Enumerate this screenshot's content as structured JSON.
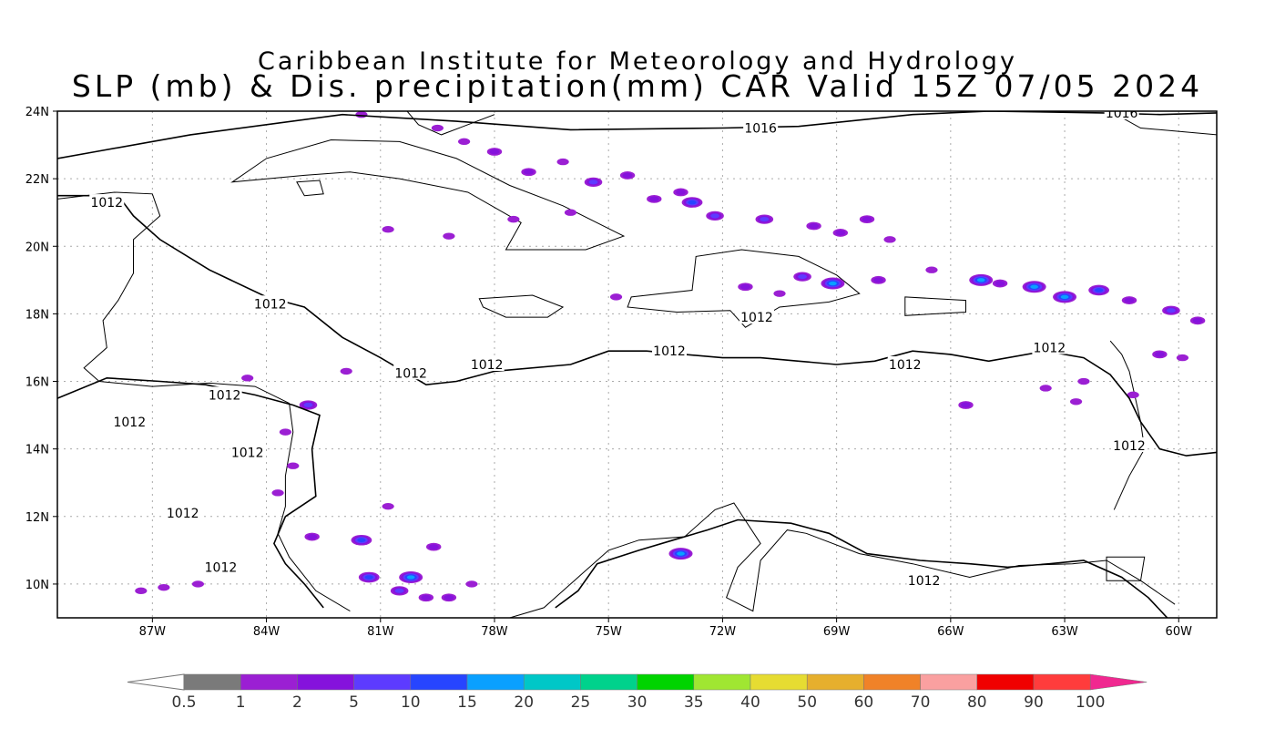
{
  "title": {
    "line1": "Caribbean Institute for Meteorology and Hydrology",
    "line2": "SLP (mb) & Dis. precipitation(mm) CAR Valid 15Z 07/05 2024"
  },
  "axes": {
    "lon_range": [
      -89.5,
      -59
    ],
    "lat_range": [
      9,
      24
    ],
    "lon_ticks": [
      {
        "value": -87,
        "label": "87W"
      },
      {
        "value": -84,
        "label": "84W"
      },
      {
        "value": -81,
        "label": "81W"
      },
      {
        "value": -78,
        "label": "78W"
      },
      {
        "value": -75,
        "label": "75W"
      },
      {
        "value": -72,
        "label": "72W"
      },
      {
        "value": -69,
        "label": "69W"
      },
      {
        "value": -66,
        "label": "66W"
      },
      {
        "value": -63,
        "label": "63W"
      },
      {
        "value": -60,
        "label": "60W"
      }
    ],
    "lat_ticks": [
      {
        "value": 24,
        "label": "24N"
      },
      {
        "value": 22,
        "label": "22N"
      },
      {
        "value": 20,
        "label": "20N"
      },
      {
        "value": 18,
        "label": "18N"
      },
      {
        "value": 16,
        "label": "16N"
      },
      {
        "value": 14,
        "label": "14N"
      },
      {
        "value": 12,
        "label": "12N"
      },
      {
        "value": 10,
        "label": "10N"
      }
    ],
    "grid": true
  },
  "isobars": [
    {
      "value": "1016",
      "points": [
        [
          -89.5,
          22.6
        ],
        [
          -88.5,
          22.8
        ],
        [
          -86,
          23.3
        ],
        [
          -82,
          23.9
        ],
        [
          -79,
          23.7
        ],
        [
          -76,
          23.45
        ],
        [
          -72,
          23.5
        ],
        [
          -70,
          23.55
        ],
        [
          -67,
          23.9
        ],
        [
          -65,
          24.0
        ],
        [
          -62,
          23.95
        ],
        [
          -60.5,
          23.9
        ],
        [
          -59,
          23.95
        ]
      ],
      "labels": [
        [
          -71,
          23.5
        ],
        [
          -61.5,
          23.95
        ]
      ]
    },
    {
      "value": "1012",
      "points": [
        [
          -89.5,
          21.5
        ],
        [
          -87.9,
          21.5
        ],
        [
          -87.5,
          20.9
        ],
        [
          -86.8,
          20.2
        ],
        [
          -85.5,
          19.3
        ],
        [
          -84,
          18.5
        ],
        [
          -83,
          18.2
        ],
        [
          -82,
          17.3
        ],
        [
          -81,
          16.7
        ],
        [
          -79.8,
          15.9
        ],
        [
          -79,
          16.0
        ],
        [
          -78,
          16.3
        ],
        [
          -76,
          16.5
        ],
        [
          -75,
          16.9
        ],
        [
          -74,
          16.9
        ],
        [
          -73,
          16.8
        ],
        [
          -72,
          16.7
        ],
        [
          -71,
          16.7
        ],
        [
          -70,
          16.6
        ],
        [
          -69,
          16.5
        ],
        [
          -68,
          16.6
        ],
        [
          -67,
          16.9
        ],
        [
          -66,
          16.8
        ],
        [
          -65,
          16.6
        ],
        [
          -63.5,
          16.9
        ],
        [
          -62.5,
          16.7
        ],
        [
          -61.8,
          16.2
        ],
        [
          -61.3,
          15.5
        ],
        [
          -61,
          14.8
        ],
        [
          -60.5,
          14.0
        ],
        [
          -59.8,
          13.8
        ],
        [
          -59,
          13.9
        ]
      ],
      "labels": [
        [
          -88.2,
          21.3
        ],
        [
          -83.9,
          18.3
        ],
        [
          -80.2,
          16.25
        ],
        [
          -78.2,
          16.5
        ],
        [
          -73.4,
          16.9
        ],
        [
          -71.1,
          17.9
        ],
        [
          -67.2,
          16.5
        ],
        [
          -63.4,
          17.0
        ],
        [
          -61.3,
          14.1
        ]
      ]
    },
    {
      "value": "1012",
      "points": [
        [
          -89.5,
          15.5
        ],
        [
          -88.2,
          16.1
        ],
        [
          -86.8,
          16.0
        ],
        [
          -85.6,
          15.9
        ],
        [
          -84.3,
          15.6
        ],
        [
          -83.3,
          15.3
        ],
        [
          -82.6,
          15.0
        ],
        [
          -82.8,
          14.0
        ],
        [
          -82.7,
          12.6
        ],
        [
          -83.5,
          12.0
        ],
        [
          -83.8,
          11.2
        ],
        [
          -83.5,
          10.6
        ],
        [
          -83.0,
          10.0
        ],
        [
          -82.5,
          9.3
        ]
      ],
      "labels": [
        [
          -85.1,
          15.6
        ],
        [
          -87.6,
          14.8
        ],
        [
          -84.5,
          13.9
        ],
        [
          -86.2,
          12.1
        ],
        [
          -85.2,
          10.5
        ]
      ]
    },
    {
      "value": "1012",
      "points": [
        [
          -76.4,
          9.3
        ],
        [
          -75.8,
          9.8
        ],
        [
          -75.3,
          10.6
        ],
        [
          -74.2,
          11.0
        ],
        [
          -73.3,
          11.3
        ],
        [
          -72.4,
          11.6
        ],
        [
          -71.6,
          11.9
        ],
        [
          -70.2,
          11.8
        ],
        [
          -69.2,
          11.5
        ],
        [
          -68.2,
          10.9
        ],
        [
          -66.8,
          10.7
        ],
        [
          -65.5,
          10.6
        ],
        [
          -64.5,
          10.5
        ],
        [
          -63.4,
          10.6
        ],
        [
          -62.5,
          10.7
        ],
        [
          -61.5,
          10.2
        ],
        [
          -60.8,
          9.6
        ],
        [
          -60.3,
          9.0
        ]
      ],
      "labels": [
        [
          -66.7,
          10.1
        ]
      ]
    }
  ],
  "coastlines": [
    {
      "name": "cuba",
      "closed": true,
      "points": [
        [
          -84.9,
          21.9
        ],
        [
          -84.0,
          22.6
        ],
        [
          -82.3,
          23.15
        ],
        [
          -80.5,
          23.1
        ],
        [
          -79.0,
          22.6
        ],
        [
          -77.6,
          21.8
        ],
        [
          -76.2,
          21.2
        ],
        [
          -74.6,
          20.3
        ],
        [
          -75.6,
          19.9
        ],
        [
          -77.7,
          19.9
        ],
        [
          -77.3,
          20.7
        ],
        [
          -78.7,
          21.6
        ],
        [
          -80.5,
          22.0
        ],
        [
          -81.8,
          22.2
        ],
        [
          -83.0,
          22.1
        ]
      ]
    },
    {
      "name": "isla-de-la-juventud",
      "closed": true,
      "points": [
        [
          -83.2,
          21.9
        ],
        [
          -82.6,
          21.95
        ],
        [
          -82.5,
          21.55
        ],
        [
          -83.0,
          21.5
        ]
      ]
    },
    {
      "name": "jamaica",
      "closed": true,
      "points": [
        [
          -78.4,
          18.45
        ],
        [
          -77.0,
          18.55
        ],
        [
          -76.2,
          18.2
        ],
        [
          -76.6,
          17.9
        ],
        [
          -77.7,
          17.9
        ],
        [
          -78.3,
          18.2
        ]
      ]
    },
    {
      "name": "hispaniola",
      "closed": true,
      "points": [
        [
          -74.4,
          18.5
        ],
        [
          -72.8,
          18.7
        ],
        [
          -72.7,
          19.7
        ],
        [
          -71.5,
          19.9
        ],
        [
          -70.0,
          19.7
        ],
        [
          -69.0,
          19.15
        ],
        [
          -68.4,
          18.6
        ],
        [
          -69.2,
          18.35
        ],
        [
          -70.5,
          18.2
        ],
        [
          -71.4,
          17.6
        ],
        [
          -71.8,
          18.1
        ],
        [
          -73.2,
          18.05
        ],
        [
          -74.5,
          18.2
        ]
      ]
    },
    {
      "name": "puerto-rico",
      "closed": true,
      "points": [
        [
          -67.2,
          18.5
        ],
        [
          -65.6,
          18.4
        ],
        [
          -65.6,
          18.05
        ],
        [
          -67.2,
          17.95
        ]
      ]
    },
    {
      "name": "yucatan-coast",
      "closed": false,
      "points": [
        [
          -89.5,
          21.4
        ],
        [
          -88.0,
          21.6
        ],
        [
          -87.0,
          21.55
        ],
        [
          -86.8,
          20.9
        ],
        [
          -87.5,
          20.2
        ],
        [
          -87.5,
          19.2
        ],
        [
          -87.9,
          18.4
        ],
        [
          -88.3,
          17.8
        ],
        [
          -88.2,
          17.0
        ],
        [
          -88.8,
          16.4
        ],
        [
          -88.4,
          16.0
        ],
        [
          -87.0,
          15.85
        ],
        [
          -85.5,
          15.95
        ],
        [
          -84.3,
          15.85
        ],
        [
          -83.4,
          15.35
        ],
        [
          -83.3,
          14.5
        ],
        [
          -83.5,
          13.2
        ],
        [
          -83.5,
          12.3
        ],
        [
          -83.7,
          11.5
        ],
        [
          -83.4,
          10.8
        ],
        [
          -82.7,
          9.8
        ],
        [
          -81.8,
          9.2
        ]
      ]
    },
    {
      "name": "colombia-venezuela-coast",
      "closed": false,
      "points": [
        [
          -77.6,
          9.0
        ],
        [
          -76.7,
          9.3
        ],
        [
          -75.7,
          10.3
        ],
        [
          -75.0,
          11.0
        ],
        [
          -74.2,
          11.3
        ],
        [
          -73.0,
          11.4
        ],
        [
          -72.2,
          12.2
        ],
        [
          -71.7,
          12.4
        ],
        [
          -71.0,
          11.2
        ],
        [
          -71.6,
          10.5
        ],
        [
          -71.9,
          9.6
        ],
        [
          -71.2,
          9.2
        ],
        [
          -71.0,
          10.7
        ],
        [
          -70.3,
          11.6
        ],
        [
          -69.8,
          11.5
        ],
        [
          -68.4,
          10.9
        ],
        [
          -67.0,
          10.6
        ],
        [
          -65.5,
          10.2
        ],
        [
          -64.2,
          10.55
        ],
        [
          -62.8,
          10.6
        ],
        [
          -61.9,
          10.7
        ],
        [
          -61.0,
          10.1
        ],
        [
          -60.1,
          9.4
        ]
      ]
    },
    {
      "name": "bahamas-florida",
      "closed": false,
      "points": [
        [
          -80.3,
          24.0
        ],
        [
          -80.0,
          23.6
        ],
        [
          -79.4,
          23.3
        ],
        [
          -78.0,
          23.9
        ]
      ]
    },
    {
      "name": "lesser-antilles",
      "closed": false,
      "points": [
        [
          -61.8,
          17.2
        ],
        [
          -61.5,
          16.8
        ],
        [
          -61.3,
          16.3
        ],
        [
          -61.2,
          15.8
        ],
        [
          -61.0,
          14.8
        ],
        [
          -60.9,
          14.0
        ],
        [
          -61.3,
          13.2
        ],
        [
          -61.7,
          12.2
        ]
      ]
    },
    {
      "name": "trinidad",
      "closed": true,
      "points": [
        [
          -61.9,
          10.8
        ],
        [
          -60.9,
          10.8
        ],
        [
          -61.0,
          10.1
        ],
        [
          -61.9,
          10.1
        ]
      ]
    },
    {
      "name": "atlantic-north-coast",
      "closed": false,
      "points": [
        [
          -61.8,
          24.0
        ],
        [
          -61.0,
          23.5
        ],
        [
          -59.0,
          23.3
        ]
      ]
    }
  ],
  "precip_blobs": [
    [
      -81.5,
      23.9,
      1
    ],
    [
      -79.5,
      23.5,
      1
    ],
    [
      -78.8,
      23.1,
      1
    ],
    [
      -78.0,
      22.8,
      2
    ],
    [
      -77.1,
      22.2,
      2
    ],
    [
      -76.2,
      22.5,
      1
    ],
    [
      -75.4,
      21.9,
      3
    ],
    [
      -74.5,
      22.1,
      2
    ],
    [
      -73.8,
      21.4,
      2
    ],
    [
      -73.1,
      21.6,
      2
    ],
    [
      -72.8,
      21.3,
      4
    ],
    [
      -72.2,
      20.9,
      3
    ],
    [
      -70.9,
      20.8,
      3
    ],
    [
      -69.6,
      20.6,
      2
    ],
    [
      -68.9,
      20.4,
      2
    ],
    [
      -68.2,
      20.8,
      2
    ],
    [
      -67.6,
      20.2,
      1
    ],
    [
      -69.9,
      19.1,
      3
    ],
    [
      -69.1,
      18.9,
      5
    ],
    [
      -67.9,
      19.0,
      2
    ],
    [
      -66.5,
      19.3,
      1
    ],
    [
      -65.2,
      19.0,
      5
    ],
    [
      -64.7,
      18.9,
      2
    ],
    [
      -63.8,
      18.8,
      5
    ],
    [
      -63.0,
      18.5,
      5
    ],
    [
      -62.1,
      18.7,
      4
    ],
    [
      -61.3,
      18.4,
      2
    ],
    [
      -60.2,
      18.1,
      3
    ],
    [
      -59.5,
      17.8,
      2
    ],
    [
      -60.5,
      16.8,
      2
    ],
    [
      -59.9,
      16.7,
      1
    ],
    [
      -61.2,
      15.6,
      1
    ],
    [
      -62.5,
      16.0,
      1
    ],
    [
      -65.6,
      15.3,
      2
    ],
    [
      -76.0,
      21.0,
      1
    ],
    [
      -77.5,
      20.8,
      1
    ],
    [
      -79.2,
      20.3,
      1
    ],
    [
      -80.8,
      20.5,
      1
    ],
    [
      -73.1,
      10.9,
      5
    ],
    [
      -81.5,
      11.3,
      4
    ],
    [
      -81.3,
      10.2,
      4
    ],
    [
      -80.2,
      10.2,
      5
    ],
    [
      -80.5,
      9.8,
      3
    ],
    [
      -79.8,
      9.6,
      2
    ],
    [
      -79.2,
      9.6,
      2
    ],
    [
      -82.9,
      15.3,
      3
    ],
    [
      -83.5,
      14.5,
      1
    ],
    [
      -83.3,
      13.5,
      1
    ],
    [
      -83.7,
      12.7,
      1
    ],
    [
      -82.8,
      11.4,
      2
    ],
    [
      -79.6,
      11.1,
      2
    ],
    [
      -85.8,
      10.0,
      1
    ],
    [
      -86.7,
      9.9,
      1
    ],
    [
      -87.3,
      9.8,
      1
    ],
    [
      -80.8,
      12.3,
      1
    ],
    [
      -78.6,
      10.0,
      1
    ],
    [
      -74.8,
      18.5,
      1
    ],
    [
      -71.4,
      18.8,
      2
    ],
    [
      -70.5,
      18.6,
      1
    ],
    [
      -63.5,
      15.8,
      1
    ],
    [
      -62.7,
      15.4,
      1
    ],
    [
      -81.9,
      16.3,
      1
    ],
    [
      -84.5,
      16.1,
      1
    ]
  ],
  "colorbar": {
    "labels": [
      "0.5",
      "1",
      "2",
      "5",
      "10",
      "15",
      "20",
      "25",
      "30",
      "35",
      "40",
      "50",
      "60",
      "70",
      "80",
      "90",
      "100"
    ],
    "colors": [
      "#7a7a7a",
      "#9b1fd3",
      "#8512dc",
      "#5d3bff",
      "#2745ff",
      "#0aa0ff",
      "#00c7c7",
      "#00d28c",
      "#00d400",
      "#a0e632",
      "#e6dc32",
      "#e6af2d",
      "#f08228",
      "#faa0a0",
      "#f00000",
      "#ff3c3c",
      "#f02890"
    ],
    "start_color": "#ffffff",
    "end_color": "#f02890"
  }
}
